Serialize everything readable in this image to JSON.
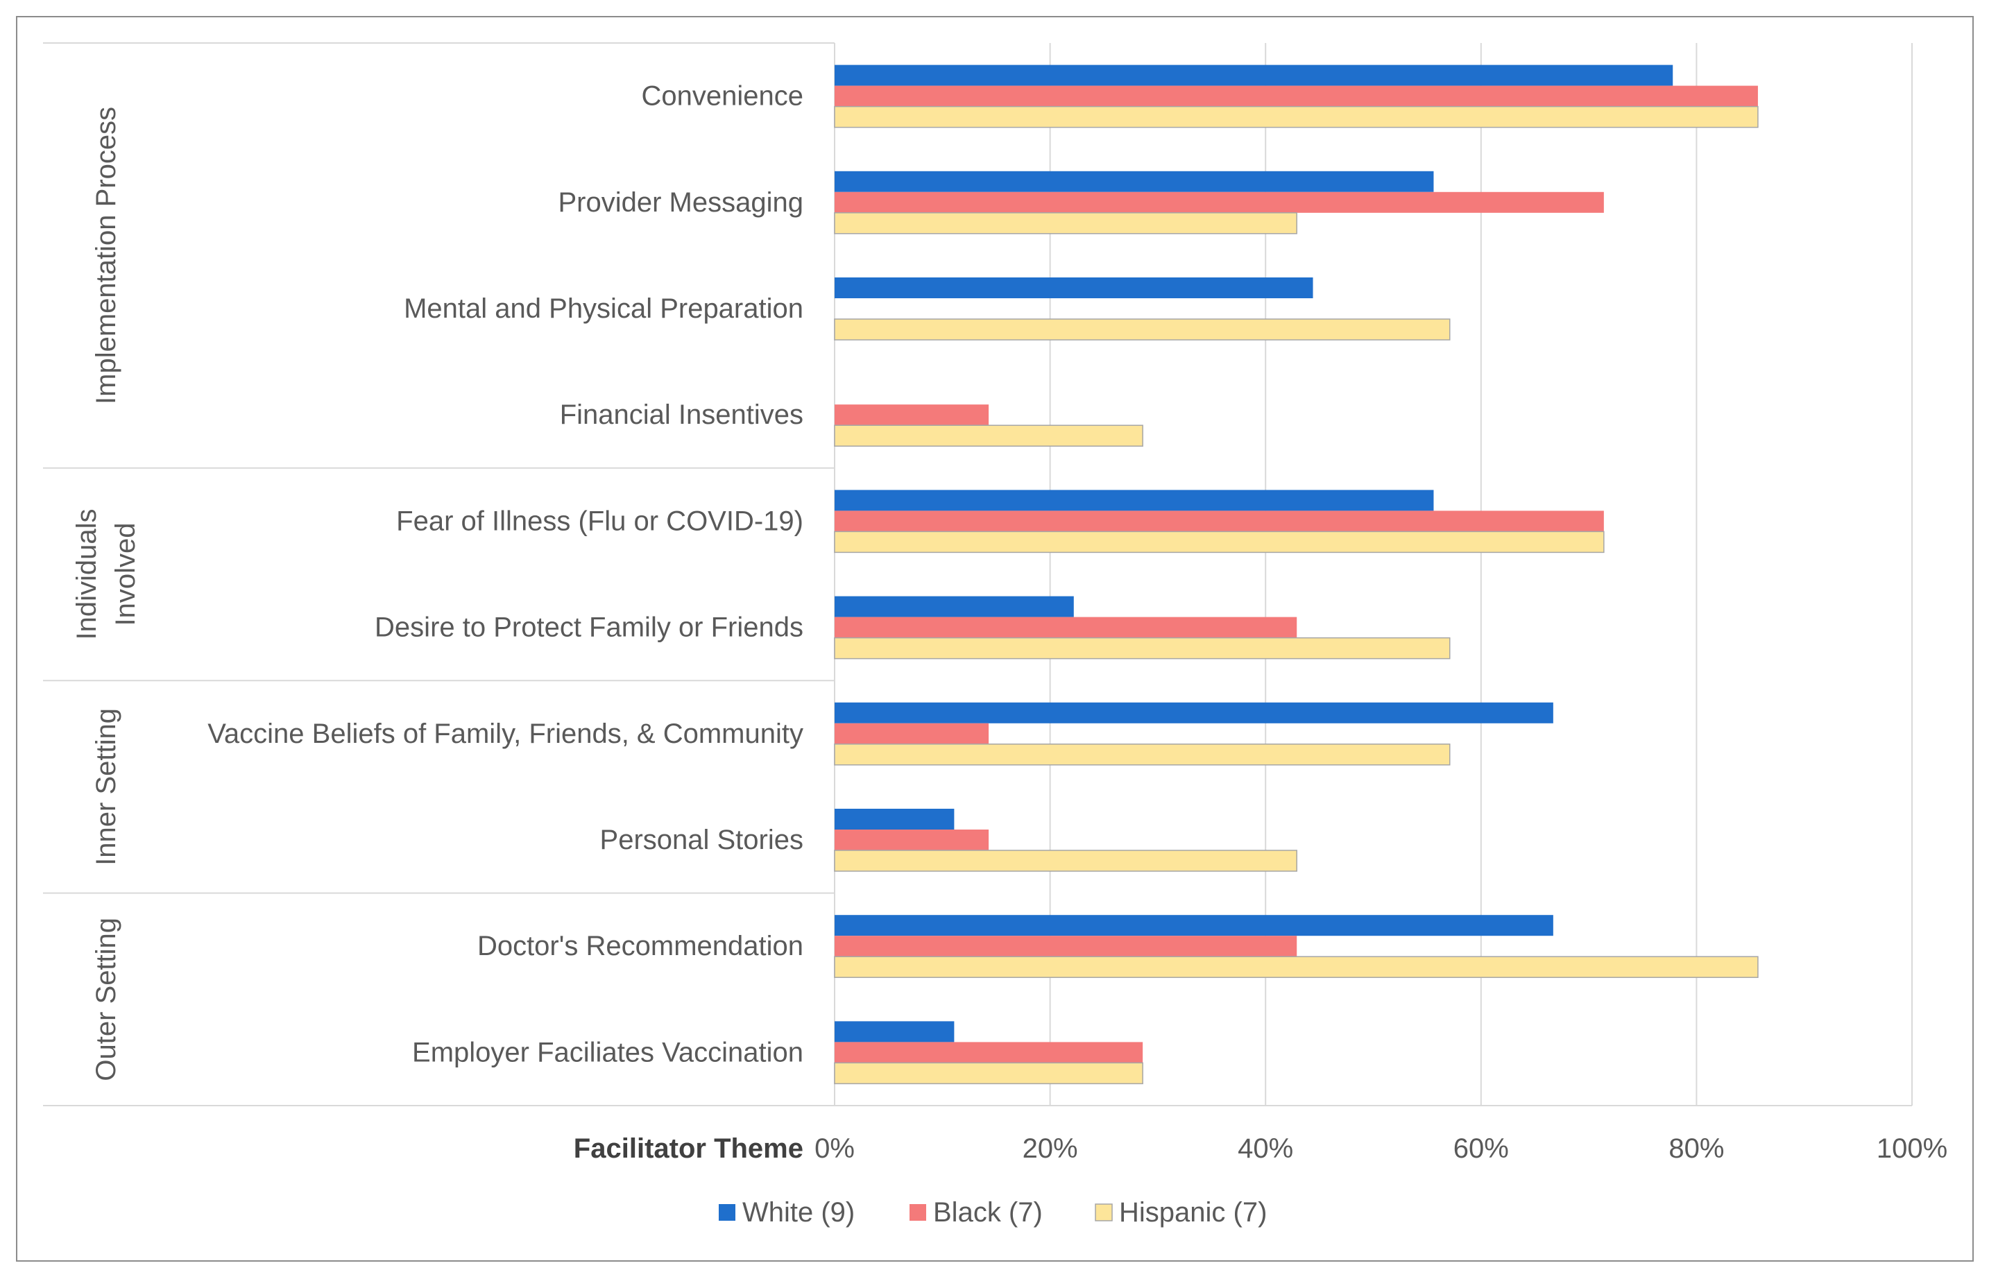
{
  "chart_data": {
    "type": "bar",
    "orientation": "horizontal",
    "xaxis_title": "Facilitator Theme",
    "xlim": [
      0,
      100
    ],
    "x_ticks": [
      "0%",
      "20%",
      "40%",
      "60%",
      "80%",
      "100%"
    ],
    "grid": true,
    "legend_position": "bottom",
    "groups": [
      {
        "name": "Implementation Process",
        "categories": [
          "Convenience",
          "Provider Messaging",
          "Mental and Physical Preparation",
          "Financial Insentives"
        ]
      },
      {
        "name": "Individuals Involved",
        "lines": [
          "Individuals",
          "Involved"
        ],
        "categories": [
          "Fear of Illness (Flu or COVID-19)",
          "Desire to Protect Family or Friends"
        ]
      },
      {
        "name": "Inner Setting",
        "categories": [
          "Vaccine Beliefs of Family, Friends, & Community",
          "Personal Stories"
        ]
      },
      {
        "name": "Outer Setting",
        "categories": [
          "Doctor's Recommendation",
          "Employer Faciliates Vaccination"
        ]
      }
    ],
    "categories": [
      "Convenience",
      "Provider Messaging",
      "Mental and Physical Preparation",
      "Financial Insentives",
      "Fear of Illness (Flu or COVID-19)",
      "Desire to Protect Family or Friends",
      "Vaccine Beliefs of Family, Friends, & Community",
      "Personal Stories",
      "Doctor's Recommendation",
      "Employer Faciliates Vaccination"
    ],
    "series": [
      {
        "name": "White (9)",
        "color": "#1f6fcc",
        "values": [
          77.8,
          55.6,
          44.4,
          0,
          55.6,
          22.2,
          66.7,
          11.1,
          66.7,
          11.1
        ]
      },
      {
        "name": "Black (7)",
        "color": "#f47a7a",
        "values": [
          85.7,
          71.4,
          0,
          14.3,
          71.4,
          42.9,
          14.3,
          14.3,
          42.9,
          28.6
        ]
      },
      {
        "name": "Hispanic (7)",
        "color": "#fde59a",
        "values": [
          85.7,
          42.9,
          57.1,
          28.6,
          71.4,
          57.1,
          57.1,
          42.9,
          85.7,
          28.6
        ]
      }
    ]
  }
}
